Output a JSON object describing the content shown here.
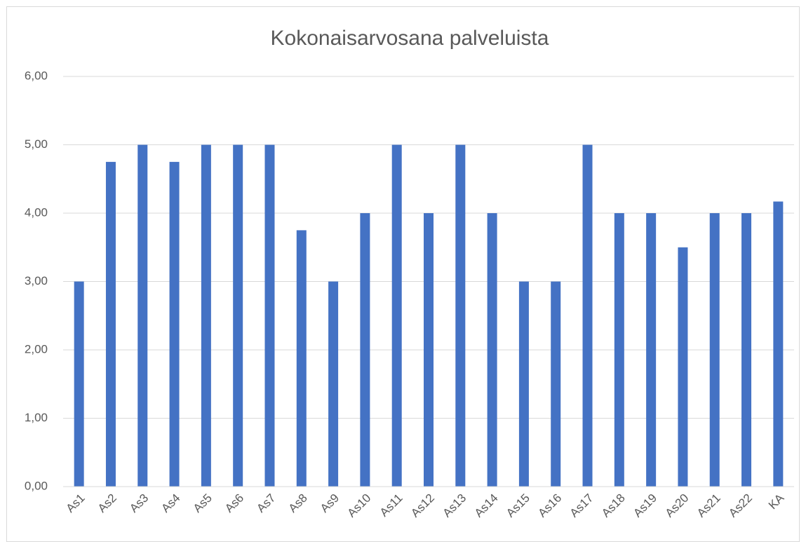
{
  "chart_data": {
    "type": "bar",
    "title": "Kokonaisarvosana palveluista",
    "categories": [
      "As1",
      "As2",
      "As3",
      "As4",
      "As5",
      "As6",
      "As7",
      "As8",
      "As9",
      "As10",
      "As11",
      "As12",
      "As13",
      "As14",
      "As15",
      "As16",
      "As17",
      "As18",
      "As19",
      "As20",
      "As21",
      "As22",
      "KA"
    ],
    "values": [
      3,
      4.75,
      5,
      4.75,
      5,
      5,
      5,
      3.75,
      3,
      4,
      5,
      4,
      5,
      4,
      3,
      3,
      5,
      4,
      4,
      3.5,
      4,
      4,
      4.17
    ],
    "color": "#4472c4",
    "ylim": [
      0,
      6
    ],
    "yticks": [
      {
        "value": 0,
        "label": "0,00"
      },
      {
        "value": 1,
        "label": "1,00"
      },
      {
        "value": 2,
        "label": "2,00"
      },
      {
        "value": 3,
        "label": "3,00"
      },
      {
        "value": 4,
        "label": "4,00"
      },
      {
        "value": 5,
        "label": "5,00"
      },
      {
        "value": 6,
        "label": "6,00"
      }
    ],
    "grid": true
  }
}
